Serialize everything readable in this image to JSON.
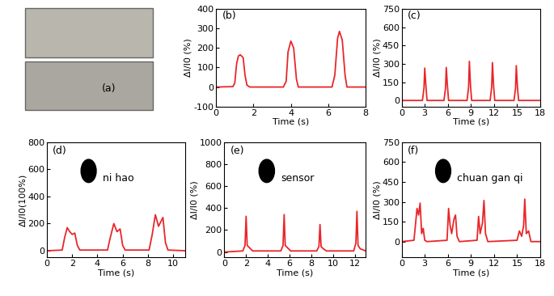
{
  "photo_panel": {
    "panel_label": "(a)"
  },
  "chart_data": [
    {
      "type": "line",
      "panel_label": "(b)",
      "color": "#e8262a",
      "xlabel": "Time (s)",
      "ylabel": "ΔI/I0 (%)",
      "x": [
        0,
        0.9,
        1.0,
        1.1,
        1.2,
        1.3,
        1.45,
        1.55,
        1.65,
        1.8,
        3.6,
        3.75,
        3.85,
        4.0,
        4.15,
        4.3,
        4.4,
        6.2,
        6.35,
        6.5,
        6.6,
        6.75,
        6.9,
        7.0,
        8
      ],
      "values": [
        0,
        2,
        20,
        120,
        160,
        165,
        150,
        60,
        10,
        0,
        0,
        30,
        180,
        235,
        200,
        40,
        0,
        0,
        60,
        250,
        285,
        240,
        60,
        0,
        0
      ],
      "xlim": [
        0,
        8
      ],
      "ylim": [
        -100,
        400
      ],
      "xticks": [
        0,
        2,
        4,
        6,
        8
      ],
      "yticks": [
        -100,
        0,
        100,
        200,
        300,
        400
      ]
    },
    {
      "type": "line",
      "panel_label": "(c)",
      "color": "#e8262a",
      "xlabel": "Time (s)",
      "ylabel": "ΔI/I0 (%)",
      "x": [
        0,
        2.7,
        2.9,
        3.0,
        3.15,
        3.3,
        5.5,
        5.7,
        5.8,
        5.95,
        6.1,
        8.5,
        8.7,
        8.8,
        8.95,
        9.1,
        11.5,
        11.7,
        11.8,
        11.95,
        12.1,
        14.6,
        14.8,
        14.9,
        15.05,
        15.2,
        18
      ],
      "values": [
        0,
        0,
        100,
        265,
        120,
        0,
        0,
        100,
        270,
        120,
        0,
        0,
        110,
        320,
        120,
        0,
        0,
        110,
        310,
        120,
        0,
        0,
        100,
        285,
        110,
        0,
        0
      ],
      "xlim": [
        0,
        18
      ],
      "ylim": [
        -50,
        750
      ],
      "xticks": [
        0,
        3,
        6,
        9,
        12,
        15,
        18
      ],
      "yticks": [
        0,
        150,
        300,
        450,
        600,
        750
      ]
    },
    {
      "type": "line",
      "panel_label": "(d)",
      "color": "#e8262a",
      "annotation": "ni hao",
      "xlabel": "Time (s)",
      "ylabel": "ΔI/I0(100%)",
      "x": [
        0,
        1.2,
        1.4,
        1.6,
        1.8,
        2.0,
        2.2,
        2.4,
        2.6,
        4.8,
        5.0,
        5.3,
        5.55,
        5.8,
        6.0,
        6.2,
        8.1,
        8.35,
        8.6,
        8.85,
        9.2,
        9.4,
        9.6,
        11
      ],
      "values": [
        0,
        5,
        100,
        170,
        140,
        120,
        130,
        40,
        5,
        5,
        90,
        200,
        140,
        160,
        40,
        5,
        5,
        120,
        265,
        180,
        245,
        60,
        5,
        0
      ],
      "xlim": [
        0,
        11
      ],
      "ylim": [
        -50,
        800
      ],
      "xticks": [
        0,
        2,
        4,
        6,
        8,
        10
      ],
      "yticks": [
        0,
        200,
        400,
        600,
        800
      ]
    },
    {
      "type": "line",
      "panel_label": "(e)",
      "color": "#e8262a",
      "annotation": "sensor",
      "xlabel": "Time (s)",
      "ylabel": "ΔI/I0 (%)",
      "x": [
        0,
        1.7,
        1.9,
        2.0,
        2.1,
        2.3,
        2.6,
        5.2,
        5.4,
        5.5,
        5.6,
        5.8,
        6.1,
        8.5,
        8.7,
        8.8,
        8.9,
        9.1,
        9.4,
        11.9,
        12.1,
        12.2,
        12.3,
        12.5,
        13
      ],
      "values": [
        0,
        10,
        60,
        325,
        60,
        40,
        10,
        10,
        60,
        340,
        60,
        40,
        10,
        10,
        50,
        250,
        50,
        30,
        10,
        10,
        80,
        370,
        60,
        30,
        10
      ],
      "xlim": [
        0,
        13
      ],
      "ylim": [
        -50,
        1000
      ],
      "xticks": [
        0,
        2,
        4,
        6,
        8,
        10,
        12
      ],
      "yticks": [
        0,
        200,
        400,
        600,
        800,
        1000
      ]
    },
    {
      "type": "line",
      "panel_label": "(f)",
      "color": "#e8262a",
      "annotation": "chuan gan qi",
      "xlabel": "Time (s)",
      "ylabel": "ΔI/I0 (%)",
      "x": [
        0,
        1.6,
        1.8,
        2.0,
        2.2,
        2.4,
        2.6,
        2.8,
        3.0,
        3.3,
        5.9,
        6.1,
        6.3,
        6.5,
        6.8,
        7.0,
        7.2,
        7.5,
        9.8,
        10.0,
        10.2,
        10.5,
        10.7,
        10.9,
        11.2,
        15.0,
        15.3,
        15.6,
        15.85,
        16.0,
        16.2,
        16.5,
        16.8,
        18
      ],
      "values": [
        0,
        10,
        130,
        250,
        200,
        290,
        60,
        100,
        10,
        0,
        10,
        250,
        120,
        60,
        170,
        200,
        40,
        0,
        10,
        190,
        60,
        140,
        310,
        60,
        0,
        10,
        80,
        40,
        120,
        320,
        60,
        80,
        0,
        0
      ],
      "xlim": [
        0,
        18
      ],
      "ylim": [
        -120,
        750
      ],
      "xticks": [
        0,
        3,
        6,
        9,
        12,
        15,
        18
      ],
      "yticks": [
        0,
        150,
        300,
        450,
        600,
        750
      ]
    }
  ]
}
